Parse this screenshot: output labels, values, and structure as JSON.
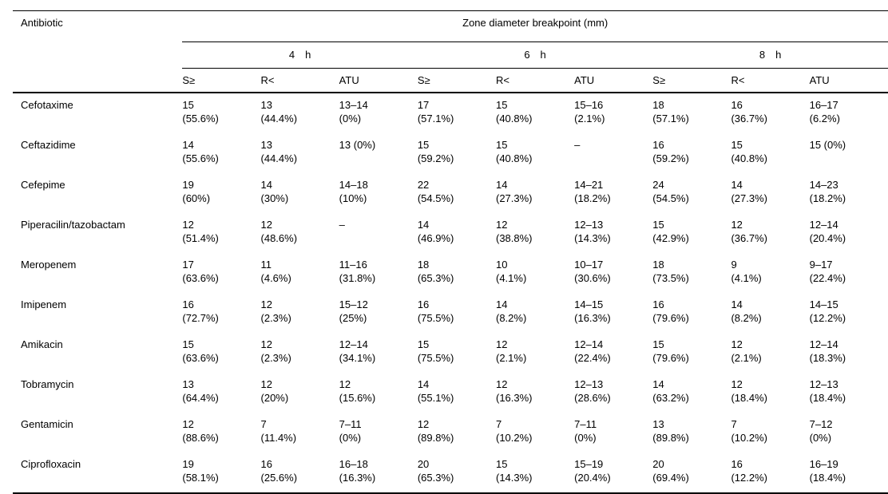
{
  "table": {
    "col1_header": "Antibiotic",
    "span_header": "Zone diameter breakpoint (mm)",
    "time_groups": [
      "4 h",
      "6 h",
      "8 h"
    ],
    "measure_headers": [
      "S≥",
      "R<",
      "ATU",
      "S≥",
      "R<",
      "ATU",
      "S≥",
      "R<",
      "ATU"
    ],
    "rows": [
      {
        "name": "Cefotaxime",
        "cells": [
          {
            "v": "15",
            "p": "(55.6%)"
          },
          {
            "v": "13",
            "p": "(44.4%)"
          },
          {
            "v": "13–14",
            "p": "(0%)"
          },
          {
            "v": "17",
            "p": "(57.1%)"
          },
          {
            "v": "15",
            "p": "(40.8%)"
          },
          {
            "v": "15–16",
            "p": "(2.1%)"
          },
          {
            "v": "18",
            "p": "(57.1%)"
          },
          {
            "v": "16",
            "p": "(36.7%)"
          },
          {
            "v": "16–17",
            "p": "(6.2%)"
          }
        ]
      },
      {
        "name": "Ceftazidime",
        "cells": [
          {
            "v": "14",
            "p": "(55.6%)"
          },
          {
            "v": "13",
            "p": "(44.4%)"
          },
          {
            "v": "13 (0%)",
            "p": ""
          },
          {
            "v": "15",
            "p": "(59.2%)"
          },
          {
            "v": "15",
            "p": "(40.8%)"
          },
          {
            "v": "–",
            "p": ""
          },
          {
            "v": "16",
            "p": "(59.2%)"
          },
          {
            "v": "15",
            "p": "(40.8%)"
          },
          {
            "v": "15 (0%)",
            "p": ""
          }
        ]
      },
      {
        "name": "Cefepime",
        "cells": [
          {
            "v": "19",
            "p": "(60%)"
          },
          {
            "v": "14",
            "p": "(30%)"
          },
          {
            "v": "14–18",
            "p": "(10%)"
          },
          {
            "v": "22",
            "p": "(54.5%)"
          },
          {
            "v": "14",
            "p": "(27.3%)"
          },
          {
            "v": "14–21",
            "p": "(18.2%)"
          },
          {
            "v": "24",
            "p": "(54.5%)"
          },
          {
            "v": "14",
            "p": "(27.3%)"
          },
          {
            "v": "14–23",
            "p": "(18.2%)"
          }
        ]
      },
      {
        "name": "Piperacilin/tazobactam",
        "cells": [
          {
            "v": "12",
            "p": "(51.4%)"
          },
          {
            "v": "12",
            "p": "(48.6%)"
          },
          {
            "v": "–",
            "p": ""
          },
          {
            "v": "14",
            "p": "(46.9%)"
          },
          {
            "v": "12",
            "p": "(38.8%)"
          },
          {
            "v": "12–13",
            "p": "(14.3%)"
          },
          {
            "v": "15",
            "p": "(42.9%)"
          },
          {
            "v": "12",
            "p": "(36.7%)"
          },
          {
            "v": "12–14",
            "p": "(20.4%)"
          }
        ]
      },
      {
        "name": "Meropenem",
        "cells": [
          {
            "v": "17",
            "p": "(63.6%)"
          },
          {
            "v": "11",
            "p": "(4.6%)"
          },
          {
            "v": "11–16",
            "p": "(31.8%)"
          },
          {
            "v": "18",
            "p": "(65.3%)"
          },
          {
            "v": "10",
            "p": "(4.1%)"
          },
          {
            "v": "10–17",
            "p": "(30.6%)"
          },
          {
            "v": "18",
            "p": "(73.5%)"
          },
          {
            "v": "9",
            "p": "(4.1%)"
          },
          {
            "v": "9–17",
            "p": "(22.4%)"
          }
        ]
      },
      {
        "name": "Imipenem",
        "cells": [
          {
            "v": "16",
            "p": "(72.7%)"
          },
          {
            "v": "12",
            "p": "(2.3%)"
          },
          {
            "v": "15–12",
            "p": "(25%)"
          },
          {
            "v": "16",
            "p": "(75.5%)"
          },
          {
            "v": "14",
            "p": "(8.2%)"
          },
          {
            "v": "14–15",
            "p": "(16.3%)"
          },
          {
            "v": "16",
            "p": "(79.6%)"
          },
          {
            "v": "14",
            "p": "(8.2%)"
          },
          {
            "v": "14–15",
            "p": "(12.2%)"
          }
        ]
      },
      {
        "name": "Amikacin",
        "cells": [
          {
            "v": "15",
            "p": "(63.6%)"
          },
          {
            "v": "12",
            "p": "(2.3%)"
          },
          {
            "v": "12–14",
            "p": "(34.1%)"
          },
          {
            "v": "15",
            "p": "(75.5%)"
          },
          {
            "v": "12",
            "p": "(2.1%)"
          },
          {
            "v": "12–14",
            "p": "(22.4%)"
          },
          {
            "v": "15",
            "p": "(79.6%)"
          },
          {
            "v": "12",
            "p": "(2.1%)"
          },
          {
            "v": "12–14",
            "p": "(18.3%)"
          }
        ]
      },
      {
        "name": "Tobramycin",
        "cells": [
          {
            "v": "13",
            "p": "(64.4%)"
          },
          {
            "v": "12",
            "p": "(20%)"
          },
          {
            "v": "12",
            "p": "(15.6%)"
          },
          {
            "v": "14",
            "p": "(55.1%)"
          },
          {
            "v": "12",
            "p": "(16.3%)"
          },
          {
            "v": "12–13",
            "p": "(28.6%)"
          },
          {
            "v": "14",
            "p": "(63.2%)"
          },
          {
            "v": "12",
            "p": "(18.4%)"
          },
          {
            "v": "12–13",
            "p": "(18.4%)"
          }
        ]
      },
      {
        "name": "Gentamicin",
        "cells": [
          {
            "v": "12",
            "p": "(88.6%)"
          },
          {
            "v": "7",
            "p": "(11.4%)"
          },
          {
            "v": "7–11",
            "p": "(0%)"
          },
          {
            "v": "12",
            "p": "(89.8%)"
          },
          {
            "v": "7",
            "p": "(10.2%)"
          },
          {
            "v": "7–11",
            "p": "(0%)"
          },
          {
            "v": "13",
            "p": "(89.8%)"
          },
          {
            "v": "7",
            "p": "(10.2%)"
          },
          {
            "v": "7–12",
            "p": "(0%)"
          }
        ]
      },
      {
        "name": "Ciprofloxacin",
        "cells": [
          {
            "v": "19",
            "p": "(58.1%)"
          },
          {
            "v": "16",
            "p": "(25.6%)"
          },
          {
            "v": "16–18",
            "p": "(16.3%)"
          },
          {
            "v": "20",
            "p": "(65.3%)"
          },
          {
            "v": "15",
            "p": "(14.3%)"
          },
          {
            "v": "15–19",
            "p": "(20.4%)"
          },
          {
            "v": "20",
            "p": "(69.4%)"
          },
          {
            "v": "16",
            "p": "(12.2%)"
          },
          {
            "v": "16–19",
            "p": "(18.4%)"
          }
        ]
      }
    ]
  }
}
